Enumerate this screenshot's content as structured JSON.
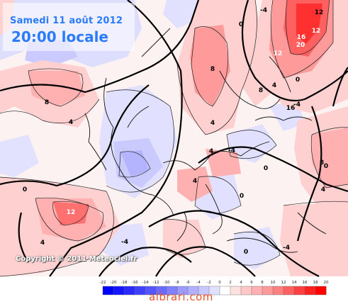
{
  "title": {
    "line1": "Samedi 11 août 2012",
    "line2": "20:00 locale"
  },
  "copyright": "Copyright © 2011 Meteociel.fr",
  "watermark": "albrari.com",
  "scale": {
    "labels": [
      "-22",
      "-20",
      "-18",
      "-16",
      "-14",
      "-12",
      "-10",
      "-8",
      "-6",
      "-4",
      "-2",
      "0",
      "2",
      "4",
      "6",
      "8",
      "10",
      "12",
      "14",
      "16",
      "18",
      "20"
    ],
    "colors": [
      "#0000ff",
      "#1515ff",
      "#2a2aff",
      "#4040ff",
      "#5555ff",
      "#6a6aff",
      "#8080ff",
      "#9a9aff",
      "#b0b0ff",
      "#c8c8ff",
      "#e0e0ff",
      "#ffffff",
      "#ffe0e0",
      "#ffc8c8",
      "#ffb0b0",
      "#ff9a9a",
      "#ff8080",
      "#ff6060",
      "#ff4040",
      "#ff2020",
      "#ff0000"
    ]
  },
  "contour_labels": [
    {
      "text": "12",
      "color": "#000"
    },
    {
      "text": "12",
      "color": "#fff"
    },
    {
      "text": "12",
      "color": "#fff"
    },
    {
      "text": "16",
      "color": "#fff"
    },
    {
      "text": "20",
      "color": "#fff"
    },
    {
      "text": "8",
      "color": "#000"
    },
    {
      "text": "8",
      "color": "#000"
    },
    {
      "text": "12",
      "color": "#fff"
    },
    {
      "text": "8",
      "color": "#000"
    },
    {
      "text": "4",
      "color": "#000"
    },
    {
      "text": "0",
      "color": "#000"
    },
    {
      "text": "-4",
      "color": "#000"
    },
    {
      "text": "4",
      "color": "#000"
    },
    {
      "text": "0",
      "color": "#000"
    },
    {
      "text": "-4",
      "color": "#000"
    },
    {
      "text": "16",
      "color": "#000"
    },
    {
      "text": "4",
      "color": "#000"
    },
    {
      "text": "0",
      "color": "#000"
    },
    {
      "text": "-4",
      "color": "#000"
    },
    {
      "text": "0",
      "color": "#000"
    },
    {
      "text": "4",
      "color": "#000"
    },
    {
      "text": "8",
      "color": "#000"
    },
    {
      "text": "4",
      "color": "#000"
    },
    {
      "text": "0",
      "color": "#000"
    },
    {
      "text": "-4",
      "color": "#000"
    },
    {
      "text": "4",
      "color": "#000"
    },
    {
      "text": "0",
      "color": "#000"
    },
    {
      "text": "-4",
      "color": "#000"
    },
    {
      "text": "4",
      "color": "#000"
    },
    {
      "text": "0",
      "color": "#000"
    }
  ]
}
